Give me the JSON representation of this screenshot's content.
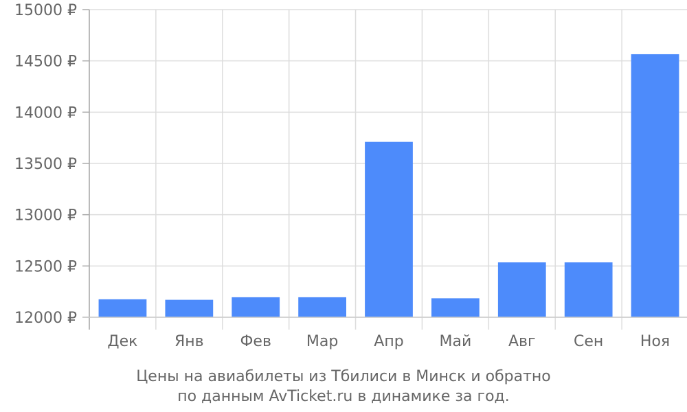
{
  "chart_data": {
    "type": "bar",
    "categories": [
      "Дек",
      "Янв",
      "Фев",
      "Мар",
      "Апр",
      "Май",
      "Авг",
      "Сен",
      "Ноя"
    ],
    "values": [
      12175,
      12170,
      12195,
      12195,
      13710,
      12185,
      12535,
      12535,
      14565
    ],
    "ylim": [
      12000,
      15000
    ],
    "yticks": [
      12000,
      12500,
      13000,
      13500,
      14000,
      14500,
      15000
    ],
    "ytick_labels": [
      "12000 ₽",
      "12500 ₽",
      "13000 ₽",
      "13500 ₽",
      "14000 ₽",
      "14500 ₽",
      "15000 ₽"
    ],
    "grid": true,
    "legend": "none",
    "bar_color": "#4d8bfb",
    "grid_color": "#dddddd",
    "axis_color": "#aaaaaa",
    "text_color": "#666666"
  },
  "caption": {
    "line1": "Цены на авиабилеты из Тбилиси в Минск и обратно",
    "line2": "по данным AvTicket.ru в динамике за год."
  }
}
